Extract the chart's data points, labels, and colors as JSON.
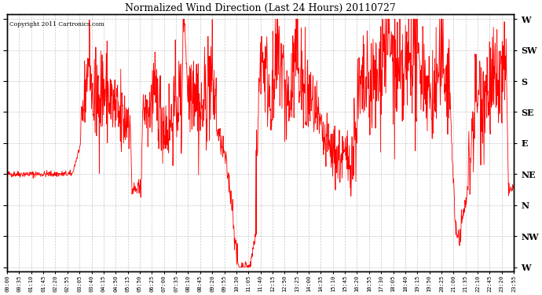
{
  "title": "Normalized Wind Direction (Last 24 Hours) 20110727",
  "copyright_text": "Copyright 2011 Cartronics.com",
  "line_color": "#FF0000",
  "background_color": "#FFFFFF",
  "plot_bg_color": "#FFFFFF",
  "grid_color": "#BBBBBB",
  "ytick_labels": [
    "W",
    "NW",
    "N",
    "NE",
    "E",
    "SE",
    "S",
    "SW",
    "W"
  ],
  "ytick_values": [
    0,
    1,
    2,
    3,
    4,
    5,
    6,
    7,
    8
  ],
  "ylim": [
    -0.15,
    8.15
  ],
  "xlim": [
    0,
    1440
  ],
  "x_tick_labels": [
    "00:00",
    "00:35",
    "01:10",
    "01:45",
    "02:20",
    "02:55",
    "03:05",
    "03:40",
    "04:15",
    "04:50",
    "05:15",
    "05:50",
    "06:25",
    "07:00",
    "07:35",
    "08:10",
    "08:45",
    "09:20",
    "09:55",
    "10:30",
    "11:05",
    "11:40",
    "12:15",
    "12:50",
    "13:25",
    "14:00",
    "14:35",
    "15:10",
    "15:45",
    "16:20",
    "16:55",
    "17:30",
    "18:05",
    "18:40",
    "19:15",
    "19:50",
    "20:25",
    "21:00",
    "21:35",
    "22:10",
    "22:45",
    "23:20",
    "23:55"
  ]
}
